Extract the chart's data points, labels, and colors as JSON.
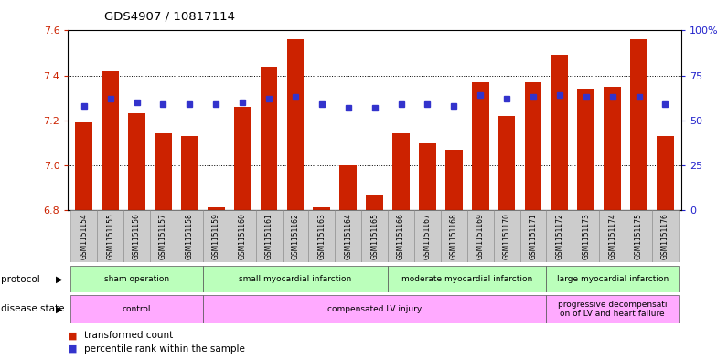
{
  "title": "GDS4907 / 10817114",
  "samples": [
    "GSM1151154",
    "GSM1151155",
    "GSM1151156",
    "GSM1151157",
    "GSM1151158",
    "GSM1151159",
    "GSM1151160",
    "GSM1151161",
    "GSM1151162",
    "GSM1151163",
    "GSM1151164",
    "GSM1151165",
    "GSM1151166",
    "GSM1151167",
    "GSM1151168",
    "GSM1151169",
    "GSM1151170",
    "GSM1151171",
    "GSM1151172",
    "GSM1151173",
    "GSM1151174",
    "GSM1151175",
    "GSM1151176"
  ],
  "transformed_count": [
    7.19,
    7.42,
    7.23,
    7.14,
    7.13,
    6.81,
    7.26,
    7.44,
    7.56,
    6.81,
    7.0,
    6.87,
    7.14,
    7.1,
    7.07,
    7.37,
    7.22,
    7.37,
    7.49,
    7.34,
    7.35,
    7.56,
    7.13
  ],
  "percentile_rank": [
    58,
    62,
    60,
    59,
    59,
    59,
    60,
    62,
    63,
    59,
    57,
    57,
    59,
    59,
    58,
    64,
    62,
    63,
    64,
    63,
    63,
    63,
    59
  ],
  "ylim_left": [
    6.8,
    7.6
  ],
  "ylim_right": [
    0,
    100
  ],
  "yticks_left": [
    6.8,
    7.0,
    7.2,
    7.4,
    7.6
  ],
  "yticks_right": [
    0,
    25,
    50,
    75,
    100
  ],
  "ytick_labels_right": [
    "0",
    "25",
    "50",
    "75",
    "100%"
  ],
  "bar_color": "#cc2200",
  "dot_color": "#3333cc",
  "bar_width": 0.65,
  "protocol_groups": [
    {
      "label": "sham operation",
      "start": 0,
      "end": 4,
      "color": "#bbffbb"
    },
    {
      "label": "small myocardial infarction",
      "start": 5,
      "end": 11,
      "color": "#bbffbb"
    },
    {
      "label": "moderate myocardial infarction",
      "start": 12,
      "end": 17,
      "color": "#bbffbb"
    },
    {
      "label": "large myocardial infarction",
      "start": 18,
      "end": 22,
      "color": "#bbffbb"
    }
  ],
  "disease_groups": [
    {
      "label": "control",
      "start": 0,
      "end": 4,
      "color": "#ffaaff"
    },
    {
      "label": "compensated LV injury",
      "start": 5,
      "end": 17,
      "color": "#ffaaff"
    },
    {
      "label": "progressive decompensati\non of LV and heart failure",
      "start": 18,
      "end": 22,
      "color": "#ffaaff"
    }
  ],
  "bg_color": "#ffffff",
  "xlabel_color": "#cc2200",
  "ylabel_right_color": "#2222cc",
  "sample_box_color": "#cccccc"
}
